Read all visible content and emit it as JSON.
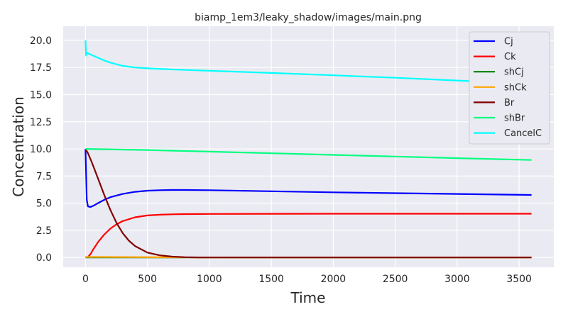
{
  "chart_data": {
    "type": "line",
    "title": "biamp_1em3/leaky_shadow/images/main.png",
    "xlabel": "Time",
    "ylabel": "Concentration",
    "xlim": [
      -180,
      3780
    ],
    "ylim": [
      -0.9,
      21.3
    ],
    "xticks": [
      0,
      500,
      1000,
      1500,
      2000,
      2500,
      3000,
      3500
    ],
    "yticks": [
      0.0,
      2.5,
      5.0,
      7.5,
      10.0,
      12.5,
      15.0,
      17.5,
      20.0
    ],
    "xtick_labels": [
      "0",
      "500",
      "1000",
      "1500",
      "2000",
      "2500",
      "3000",
      "3500"
    ],
    "ytick_labels": [
      "0.0",
      "2.5",
      "5.0",
      "7.5",
      "10.0",
      "12.5",
      "15.0",
      "17.5",
      "20.0"
    ],
    "grid": true,
    "legend_position": "top-right",
    "series": [
      {
        "name": "Cj",
        "color": "#0000ff",
        "x": [
          0,
          10,
          20,
          40,
          70,
          100,
          150,
          200,
          300,
          400,
          500,
          600,
          700,
          800,
          1000,
          1500,
          2000,
          2500,
          3000,
          3600
        ],
        "y": [
          10.0,
          5.3,
          4.7,
          4.65,
          4.8,
          5.0,
          5.3,
          5.55,
          5.85,
          6.05,
          6.15,
          6.2,
          6.22,
          6.22,
          6.2,
          6.1,
          6.0,
          5.92,
          5.85,
          5.76
        ]
      },
      {
        "name": "Ck",
        "color": "#ff0000",
        "x": [
          0,
          20,
          40,
          60,
          100,
          150,
          200,
          250,
          300,
          400,
          500,
          600,
          700,
          800,
          1000,
          1500,
          2000,
          2500,
          3000,
          3600
        ],
        "y": [
          0.0,
          0.05,
          0.3,
          0.7,
          1.4,
          2.1,
          2.65,
          3.05,
          3.35,
          3.7,
          3.87,
          3.94,
          3.98,
          4.0,
          4.01,
          4.02,
          4.03,
          4.03,
          4.03,
          4.03
        ]
      },
      {
        "name": "shCj",
        "color": "#008000",
        "x": [
          0,
          3600
        ],
        "y": [
          0.0,
          0.0
        ]
      },
      {
        "name": "shCk",
        "color": "#ffa500",
        "x": [
          0,
          100,
          300,
          600,
          900,
          1200,
          3600
        ],
        "y": [
          0.05,
          0.05,
          0.04,
          0.02,
          0.01,
          0.0,
          0.0
        ]
      },
      {
        "name": "Br",
        "color": "#800000",
        "x": [
          0,
          20,
          50,
          100,
          150,
          200,
          250,
          300,
          350,
          400,
          500,
          600,
          700,
          800,
          900,
          1000,
          1500,
          2000,
          3000,
          3600
        ],
        "y": [
          10.0,
          9.6,
          8.8,
          7.3,
          5.8,
          4.4,
          3.2,
          2.25,
          1.55,
          1.05,
          0.45,
          0.2,
          0.08,
          0.03,
          0.01,
          0.0,
          0.0,
          0.0,
          0.0,
          0.0
        ]
      },
      {
        "name": "shBr",
        "color": "#00ff7f",
        "x": [
          0,
          500,
          1000,
          1500,
          2000,
          2500,
          3000,
          3600
        ],
        "y": [
          10.0,
          9.9,
          9.75,
          9.6,
          9.45,
          9.3,
          9.15,
          8.98
        ]
      },
      {
        "name": "CancelC",
        "color": "#00ffff",
        "x": [
          0,
          5,
          10,
          20,
          50,
          100,
          150,
          200,
          300,
          400,
          500,
          700,
          1000,
          1500,
          2000,
          2500,
          3000,
          3600
        ],
        "y": [
          20.0,
          18.6,
          18.85,
          18.8,
          18.65,
          18.4,
          18.15,
          17.95,
          17.65,
          17.5,
          17.42,
          17.32,
          17.2,
          17.0,
          16.78,
          16.55,
          16.3,
          15.98
        ]
      }
    ]
  }
}
